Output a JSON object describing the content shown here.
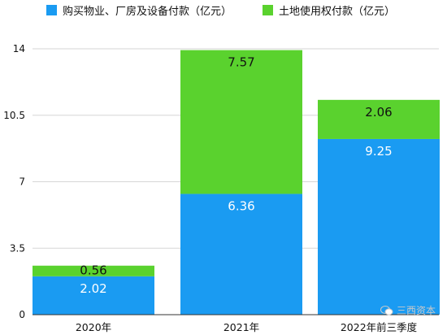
{
  "chart_data": {
    "type": "bar",
    "stacked": true,
    "categories": [
      "2020年",
      "2021年",
      "2022年前三季度"
    ],
    "series": [
      {
        "name": "购买物业、厂房及设备付款（亿元）",
        "values": [
          2.02,
          6.36,
          9.25
        ],
        "color": "#1a9bf2",
        "label_color": "#ffffff"
      },
      {
        "name": "土地使用权付款（亿元）",
        "values": [
          0.56,
          7.57,
          2.06
        ],
        "color": "#5ad22e",
        "label_color": "#111111"
      }
    ],
    "yticks": [
      "0",
      "3.5",
      "7",
      "10.5",
      "14"
    ],
    "ylim": [
      0,
      14
    ],
    "grid": true,
    "legend_position": "top",
    "title": "",
    "xlabel": "",
    "ylabel": ""
  },
  "watermark": {
    "text": "三西资本"
  }
}
